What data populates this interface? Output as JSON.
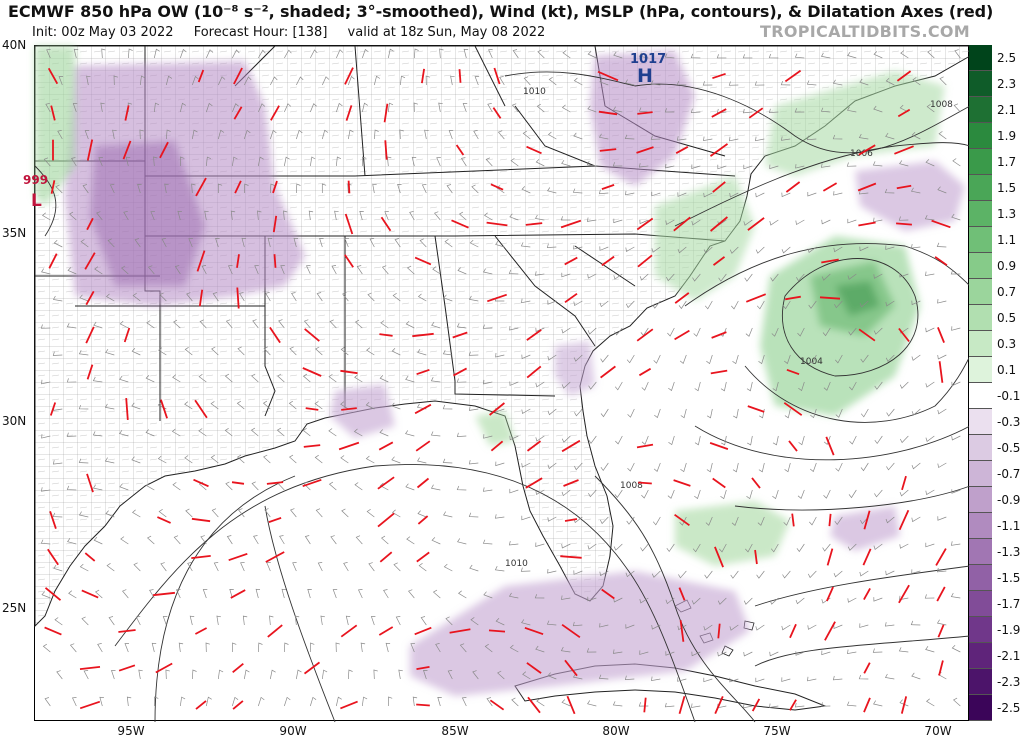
{
  "header": {
    "title": "ECMWF 850 hPa OW (10⁻⁸ s⁻², shaded; 3°-smoothed), Wind (kt), MSLP (hPa, contours), & Dilatation Axes (red)",
    "init": "Init: 00z May 03 2022",
    "forecast_hour": "Forecast Hour: [138]",
    "valid": "valid at 18z Sun, May 08 2022",
    "watermark": "TROPICALTIDBITS.COM"
  },
  "axes": {
    "lat_labels": [
      "40N",
      "35N",
      "30N",
      "25N"
    ],
    "lon_labels": [
      "95W",
      "90W",
      "85W",
      "80W",
      "75W",
      "70W"
    ]
  },
  "pressure_centers": [
    {
      "kind": "H",
      "value": "1017",
      "color": "#1f3f8f"
    },
    {
      "kind": "L",
      "value": "999",
      "color": "#c0143c"
    }
  ],
  "isobar_labels": [
    "1010",
    "1008",
    "1006",
    "1004",
    "1008",
    "1010"
  ],
  "colorbar": {
    "labels": [
      "2.5",
      "2.3",
      "2.1",
      "1.9",
      "1.7",
      "1.5",
      "1.3",
      "1.1",
      "0.9",
      "0.7",
      "0.5",
      "0.3",
      "0.1",
      "-0.1",
      "-0.3",
      "-0.5",
      "-0.7",
      "-0.9",
      "-1.1",
      "-1.3",
      "-1.5",
      "-1.7",
      "-1.9",
      "-2.1",
      "-2.3",
      "-2.5"
    ],
    "positive_colors": [
      "#00441b",
      "#0f5c29",
      "#1e7033",
      "#2b8a3e",
      "#3a9a4a",
      "#4aa657",
      "#5cb366",
      "#70bf77",
      "#86cb89",
      "#9bd59c",
      "#b1dfb0",
      "#c7e9c5",
      "#def3dc",
      "#ffffff"
    ],
    "negative_colors": [
      "#ffffff",
      "#ebe0ef",
      "#dccbe3",
      "#cdb5d7",
      "#bfa0cb",
      "#b08bbf",
      "#a176b3",
      "#9161a6",
      "#814c98",
      "#70378a",
      "#5f247a",
      "#4c146a",
      "#3b0559"
    ]
  }
}
